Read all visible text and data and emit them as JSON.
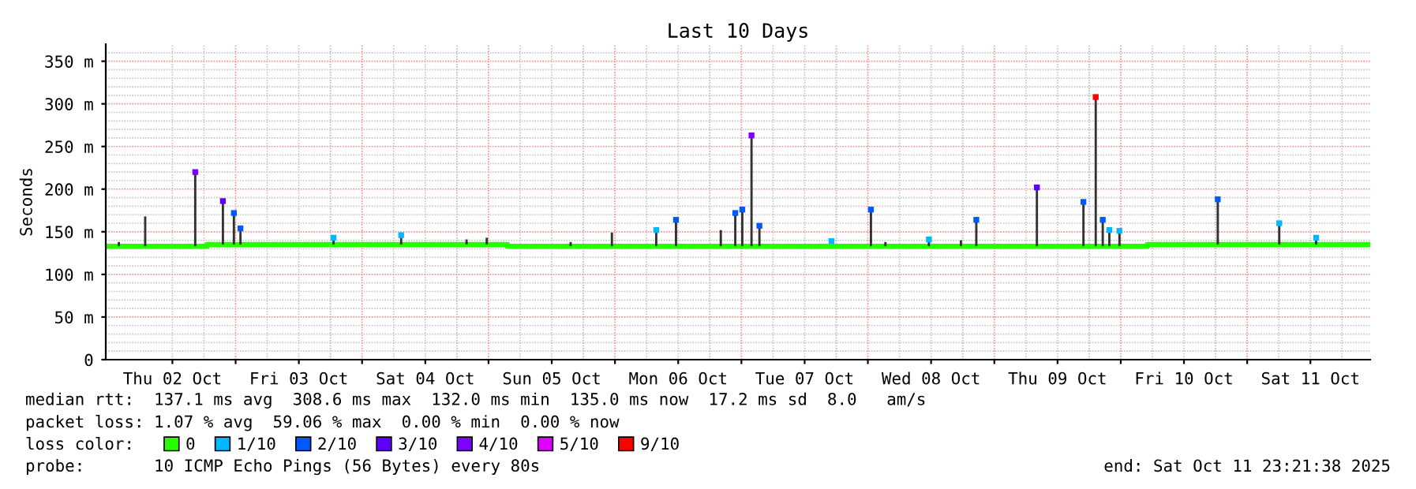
{
  "chart_data": {
    "type": "step",
    "title": "Last 10 Days",
    "ylabel": "Seconds",
    "xlim": [
      "2025-10-01T23:21",
      "2025-10-11T23:21"
    ],
    "xticks": [
      {
        "value": "2025-10-02T12:00",
        "label": "Thu 02 Oct"
      },
      {
        "value": "2025-10-03T00:00",
        "label": null
      },
      {
        "value": "2025-10-03T12:00",
        "label": "Fri 03 Oct"
      },
      {
        "value": "2025-10-04T00:00",
        "label": null
      },
      {
        "value": "2025-10-04T12:00",
        "label": "Sat 04 Oct"
      },
      {
        "value": "2025-10-05T00:00",
        "label": null
      },
      {
        "value": "2025-10-05T12:00",
        "label": "Sun 05 Oct"
      },
      {
        "value": "2025-10-06T00:00",
        "label": null
      },
      {
        "value": "2025-10-06T12:00",
        "label": "Mon 06 Oct"
      },
      {
        "value": "2025-10-07T00:00",
        "label": null
      },
      {
        "value": "2025-10-07T12:00",
        "label": "Tue 07 Oct"
      },
      {
        "value": "2025-10-08T00:00",
        "label": null
      },
      {
        "value": "2025-10-08T12:00",
        "label": "Wed 08 Oct"
      },
      {
        "value": "2025-10-09T00:00",
        "label": null
      },
      {
        "value": "2025-10-09T12:00",
        "label": "Thu 09 Oct"
      },
      {
        "value": "2025-10-10T00:00",
        "label": null
      },
      {
        "value": "2025-10-10T12:00",
        "label": "Fri 10 Oct"
      },
      {
        "value": "2025-10-11T00:00",
        "label": null
      },
      {
        "value": "2025-10-11T12:00",
        "label": "Sat 11 Oct"
      }
    ],
    "ylim": [
      0,
      370
    ],
    "yticks": [
      0,
      {
        "value": 50,
        "label": "50 m"
      },
      {
        "value": 100,
        "label": "100 m"
      },
      {
        "value": 150,
        "label": "150 m"
      },
      {
        "value": 200,
        "label": "200 m"
      },
      {
        "value": 250,
        "label": "250 m"
      },
      {
        "value": 300,
        "label": "300 m"
      },
      {
        "value": 350,
        "label": "350 m"
      }
    ],
    "grid": true,
    "legend": "bottom",
    "legend_title": "loss color:",
    "series": [
      {
        "type": "bar",
        "color": "#333333",
        "x": [
          "2025-10-02T01:50",
          "2025-10-02T06:50",
          "2025-10-02T16:20",
          "2025-10-02T21:35",
          "2025-10-02T23:40",
          "2025-10-03T00:55",
          "2025-10-03T18:35",
          "2025-10-04T07:25",
          "2025-10-04T19:50",
          "2025-10-04T23:40",
          "2025-10-05T15:35",
          "2025-10-05T23:25",
          "2025-10-06T07:50",
          "2025-10-06T11:35",
          "2025-10-06T20:05",
          "2025-10-06T22:50",
          "2025-10-07T00:10",
          "2025-10-07T01:55",
          "2025-10-07T03:25",
          "2025-10-08T00:35",
          "2025-10-08T03:20",
          "2025-10-08T11:35",
          "2025-10-08T17:40",
          "2025-10-08T20:35",
          "2025-10-09T08:05",
          "2025-10-09T16:55",
          "2025-10-09T19:15",
          "2025-10-09T20:35",
          "2025-10-09T21:50",
          "2025-10-09T23:45",
          "2025-10-10T18:25",
          "2025-10-11T06:05",
          "2025-10-11T13:05"
        ],
        "base": [
          133,
          133,
          133,
          135,
          135,
          135,
          135,
          135,
          135,
          135,
          133,
          133,
          133,
          133,
          133,
          133,
          133,
          133,
          133,
          133,
          133,
          133,
          133,
          133,
          133,
          133,
          133,
          133,
          133,
          133,
          135,
          135,
          135
        ],
        "values": [
          5,
          35,
          87,
          51,
          37,
          19,
          8,
          11,
          6,
          8,
          5,
          16,
          19,
          31,
          19,
          39,
          43,
          130,
          24,
          43,
          5,
          8,
          7,
          31,
          69,
          52,
          175,
          31,
          19,
          18,
          53,
          25,
          8
        ]
      },
      {
        "name": "0",
        "color": "#26ff00",
        "x": [
          "2025-10-01T23:21",
          "2025-10-02T18:35",
          "2025-10-05T03:35",
          "2025-10-10T05:05",
          "2025-10-11T23:21"
        ],
        "values": [
          133,
          135,
          133,
          135,
          135
        ]
      },
      {
        "type": "scatter",
        "name": "1/10",
        "color": "#00b8ff",
        "marker": "square",
        "x": [
          "2025-10-03T18:35",
          "2025-10-04T07:25",
          "2025-10-06T07:50",
          "2025-10-07T17:05",
          "2025-10-08T11:35",
          "2025-10-09T21:50",
          "2025-10-09T23:45",
          "2025-10-11T06:05",
          "2025-10-11T13:05"
        ],
        "values": [
          143,
          146,
          152,
          139,
          141,
          152,
          151,
          160,
          143
        ]
      },
      {
        "type": "scatter",
        "name": "2/10",
        "color": "#0059ff",
        "marker": "square",
        "x": [
          "2025-10-02T23:40",
          "2025-10-03T00:55",
          "2025-10-06T11:35",
          "2025-10-06T22:50",
          "2025-10-07T00:10",
          "2025-10-07T03:25",
          "2025-10-08T00:35",
          "2025-10-08T20:35",
          "2025-10-09T16:55",
          "2025-10-09T20:35",
          "2025-10-10T18:25"
        ],
        "values": [
          172,
          154,
          164,
          172,
          176,
          157,
          176,
          164,
          185,
          164,
          188
        ]
      },
      {
        "type": "scatter",
        "name": "3/10",
        "color": "#5e00ff",
        "marker": "square",
        "x": [
          "2025-10-02T21:35",
          "2025-10-09T08:05"
        ],
        "values": [
          186,
          202
        ]
      },
      {
        "type": "scatter",
        "name": "4/10",
        "color": "#7e00ff",
        "marker": "square",
        "x": [
          "2025-10-02T16:20",
          "2025-10-07T01:55"
        ],
        "values": [
          220,
          263
        ]
      },
      {
        "type": "scatter",
        "name": "5/10",
        "color": "#dd00ff",
        "marker": "square"
      },
      {
        "type": "scatter",
        "name": "9/10",
        "color": "#ff0000",
        "marker": "square",
        "x": [
          "2025-10-09T19:15"
        ],
        "values": [
          308
        ]
      }
    ],
    "annotations": [
      "median rtt:  137.1 ms avg  308.6 ms max  132.0 ms min  135.0 ms now  17.2 ms sd  8.0   am/s",
      "packet loss: 1.07 % avg  59.06 % max  0.00 % min  0.00 % now",
      "probe:       10 ICMP Echo Pings (56 Bytes) every 80s",
      "end: Sat Oct 11 23:21:38 2025"
    ]
  }
}
